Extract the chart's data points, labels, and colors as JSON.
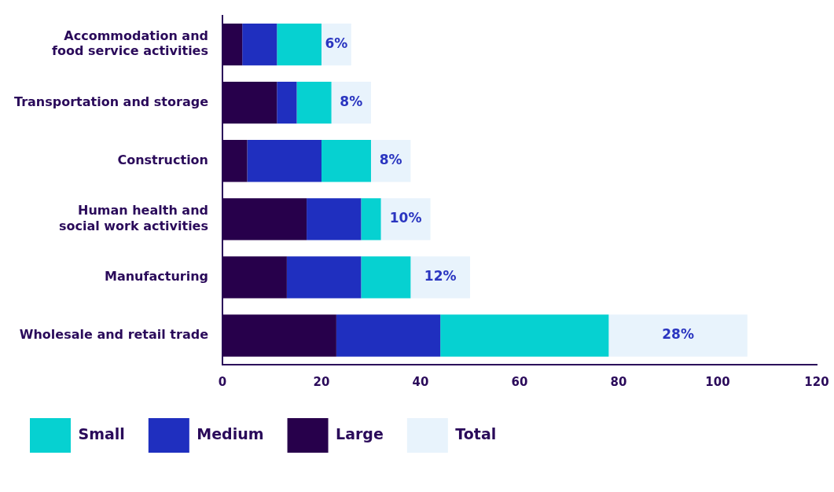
{
  "chart_data": {
    "type": "bar",
    "orientation": "horizontal",
    "stacked": true,
    "categories": [
      "Accommodation and food service activities",
      "Transportation and storage",
      "Construction",
      "Human health and social work activities",
      "Manufacturing",
      "Wholesale and retail trade"
    ],
    "series": [
      {
        "name": "Large",
        "color": "#27004b",
        "values": [
          4,
          11,
          5,
          17,
          13,
          23
        ]
      },
      {
        "name": "Medium",
        "color": "#1f2fbf",
        "values": [
          7,
          4,
          15,
          11,
          15,
          21
        ]
      },
      {
        "name": "Small",
        "color": "#06d1d1",
        "values": [
          9,
          7,
          10,
          4,
          10,
          34
        ]
      },
      {
        "name": "Total",
        "color": "#e8f3fc",
        "values": [
          6,
          8,
          8,
          10,
          12,
          28
        ],
        "value_labels": [
          "6%",
          "8%",
          "8%",
          "10%",
          "12%",
          "28%"
        ]
      }
    ],
    "xlim": [
      0,
      120
    ],
    "xticks": [
      0,
      20,
      40,
      60,
      80,
      100,
      120
    ],
    "grid": false,
    "legend": "bottom"
  }
}
